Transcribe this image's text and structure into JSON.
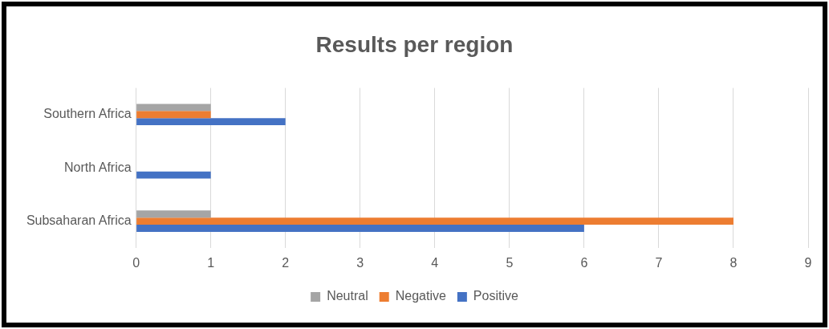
{
  "chart_data": {
    "type": "bar",
    "orientation": "horizontal",
    "title": "Results per region",
    "categories": [
      "Southern Africa",
      "North Africa",
      "Subsaharan Africa"
    ],
    "series": [
      {
        "name": "Neutral",
        "color": "#a5a5a5",
        "values": [
          1,
          0,
          1
        ]
      },
      {
        "name": "Negative",
        "color": "#ed7d31",
        "values": [
          1,
          0,
          8
        ]
      },
      {
        "name": "Positive",
        "color": "#4472c4",
        "values": [
          2,
          1,
          6
        ]
      }
    ],
    "xlim": [
      0,
      9
    ],
    "xticks": [
      0,
      1,
      2,
      3,
      4,
      5,
      6,
      7,
      8,
      9
    ],
    "grid": "x",
    "legend": "bottom"
  }
}
